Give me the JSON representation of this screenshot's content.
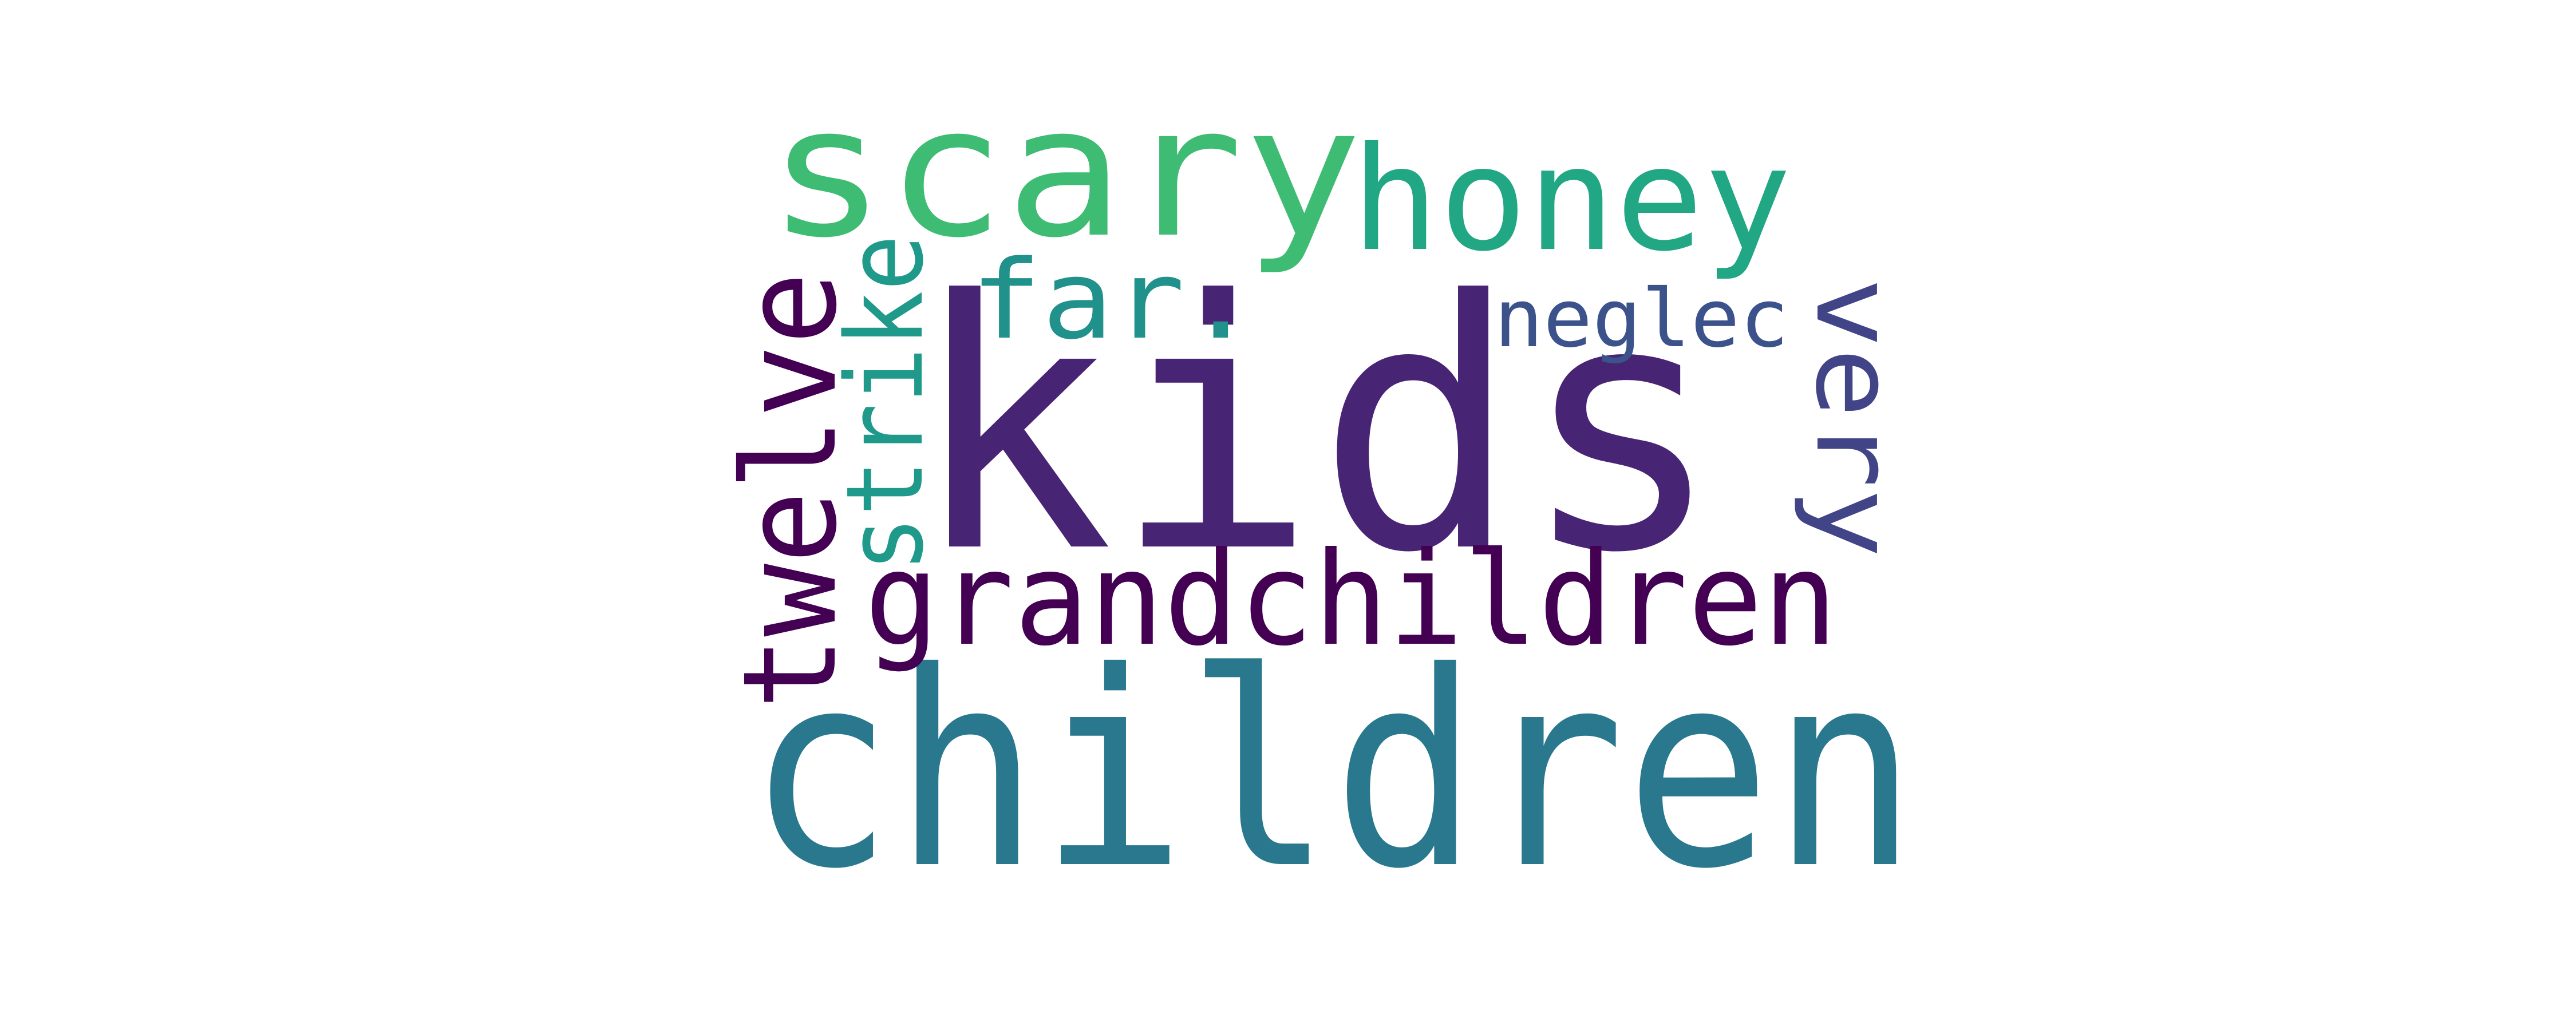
{
  "words": {
    "kids": {
      "text": "kids",
      "color": "#482475"
    },
    "children": {
      "text": "children",
      "color": "#2a788e"
    },
    "scary": {
      "text": "scary",
      "color": "#3fbc73"
    },
    "honey": {
      "text": "honey",
      "color": "#22a785"
    },
    "grandchildren": {
      "text": "grandchildren",
      "color": "#440154"
    },
    "twelve": {
      "text": "twelve",
      "color": "#440154"
    },
    "strike": {
      "text": "strike",
      "color": "#1f9a8a"
    },
    "very": {
      "text": "very",
      "color": "#414487"
    },
    "far": {
      "text": "far.",
      "color": "#21918c"
    },
    "neglec": {
      "text": "neglec",
      "color": "#3b528b"
    }
  },
  "background_color": "#ffffff"
}
